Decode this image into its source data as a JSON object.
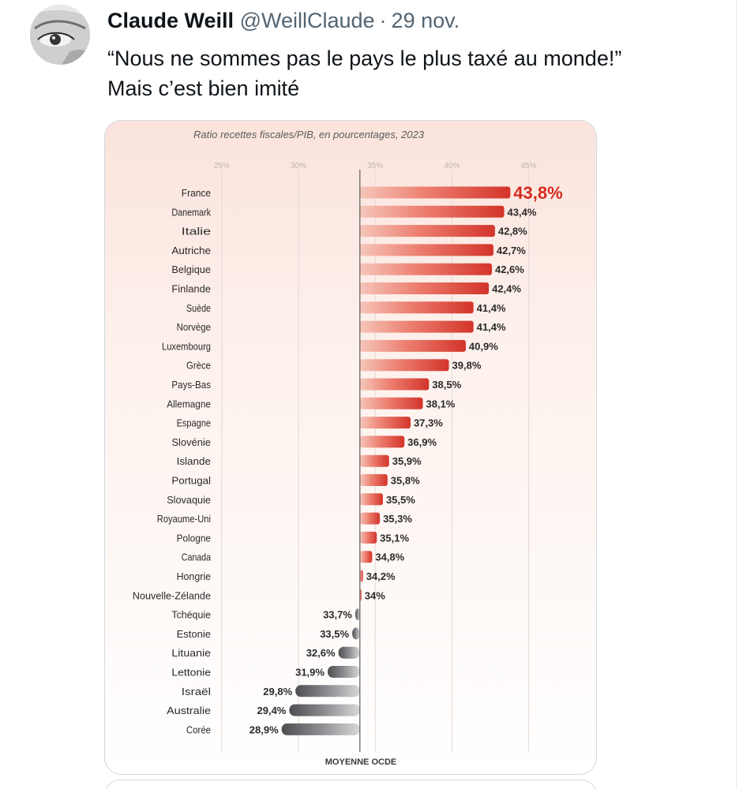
{
  "tweet": {
    "author_name": "Claude Weill",
    "author_handle": "@WeillClaude",
    "separator": "·",
    "date": "29 nov.",
    "text_lines": [
      "“Nous ne sommes pas le pays le plus taxé au monde!”",
      "Mais c’est bien imité"
    ]
  },
  "chart_data": {
    "type": "bar",
    "orientation": "horizontal",
    "title": "Ratio recettes fiscales/PIB, en pourcentages, 2023",
    "x_ticks": [
      "25%",
      "30%",
      "35%",
      "40%",
      "45%"
    ],
    "x_tick_values": [
      25,
      30,
      35,
      40,
      45
    ],
    "xlim": [
      24,
      46.5
    ],
    "reference_line": {
      "value": 34,
      "label": "MOYENNE OCDE"
    },
    "categories": [
      "France",
      "Danemark",
      "Italie",
      "Autriche",
      "Belgique",
      "Finlande",
      "Suède",
      "Norvège",
      "Luxembourg",
      "Grèce",
      "Pays-Bas",
      "Allemagne",
      "Espagne",
      "Slovénie",
      "Islande",
      "Portugal",
      "Slovaquie",
      "Royaume-Uni",
      "Pologne",
      "Canada",
      "Hongrie",
      "Nouvelle-Zélande",
      "Tchéquie",
      "Estonie",
      "Lituanie",
      "Lettonie",
      "Israël",
      "Australie",
      "Corée"
    ],
    "values": [
      43.8,
      43.4,
      42.8,
      42.7,
      42.6,
      42.4,
      41.4,
      41.4,
      40.9,
      39.8,
      38.5,
      38.1,
      37.3,
      36.9,
      35.9,
      35.8,
      35.5,
      35.3,
      35.1,
      34.8,
      34.2,
      34,
      33.7,
      33.5,
      32.6,
      31.9,
      29.8,
      29.4,
      28.9
    ],
    "value_labels": [
      "43,8%",
      "43,4%",
      "42,8%",
      "42,7%",
      "42,6%",
      "42,4%",
      "41,4%",
      "41,4%",
      "40,9%",
      "39,8%",
      "38,5%",
      "38,1%",
      "37,3%",
      "36,9%",
      "35,9%",
      "35,8%",
      "35,5%",
      "35,3%",
      "35,1%",
      "34,8%",
      "34,2%",
      "34%",
      "33,7%",
      "33,5%",
      "32,6%",
      "31,9%",
      "29,8%",
      "29,4%",
      "28,9%"
    ],
    "highlight_category": "France",
    "colors": {
      "above_average_bar": "#d63a2e",
      "below_average_bar": "#55575c",
      "highlight_label": "#d62a1f",
      "reference_line": "#5a5a5a",
      "grid": "#e3d8d6"
    },
    "grid": true
  }
}
